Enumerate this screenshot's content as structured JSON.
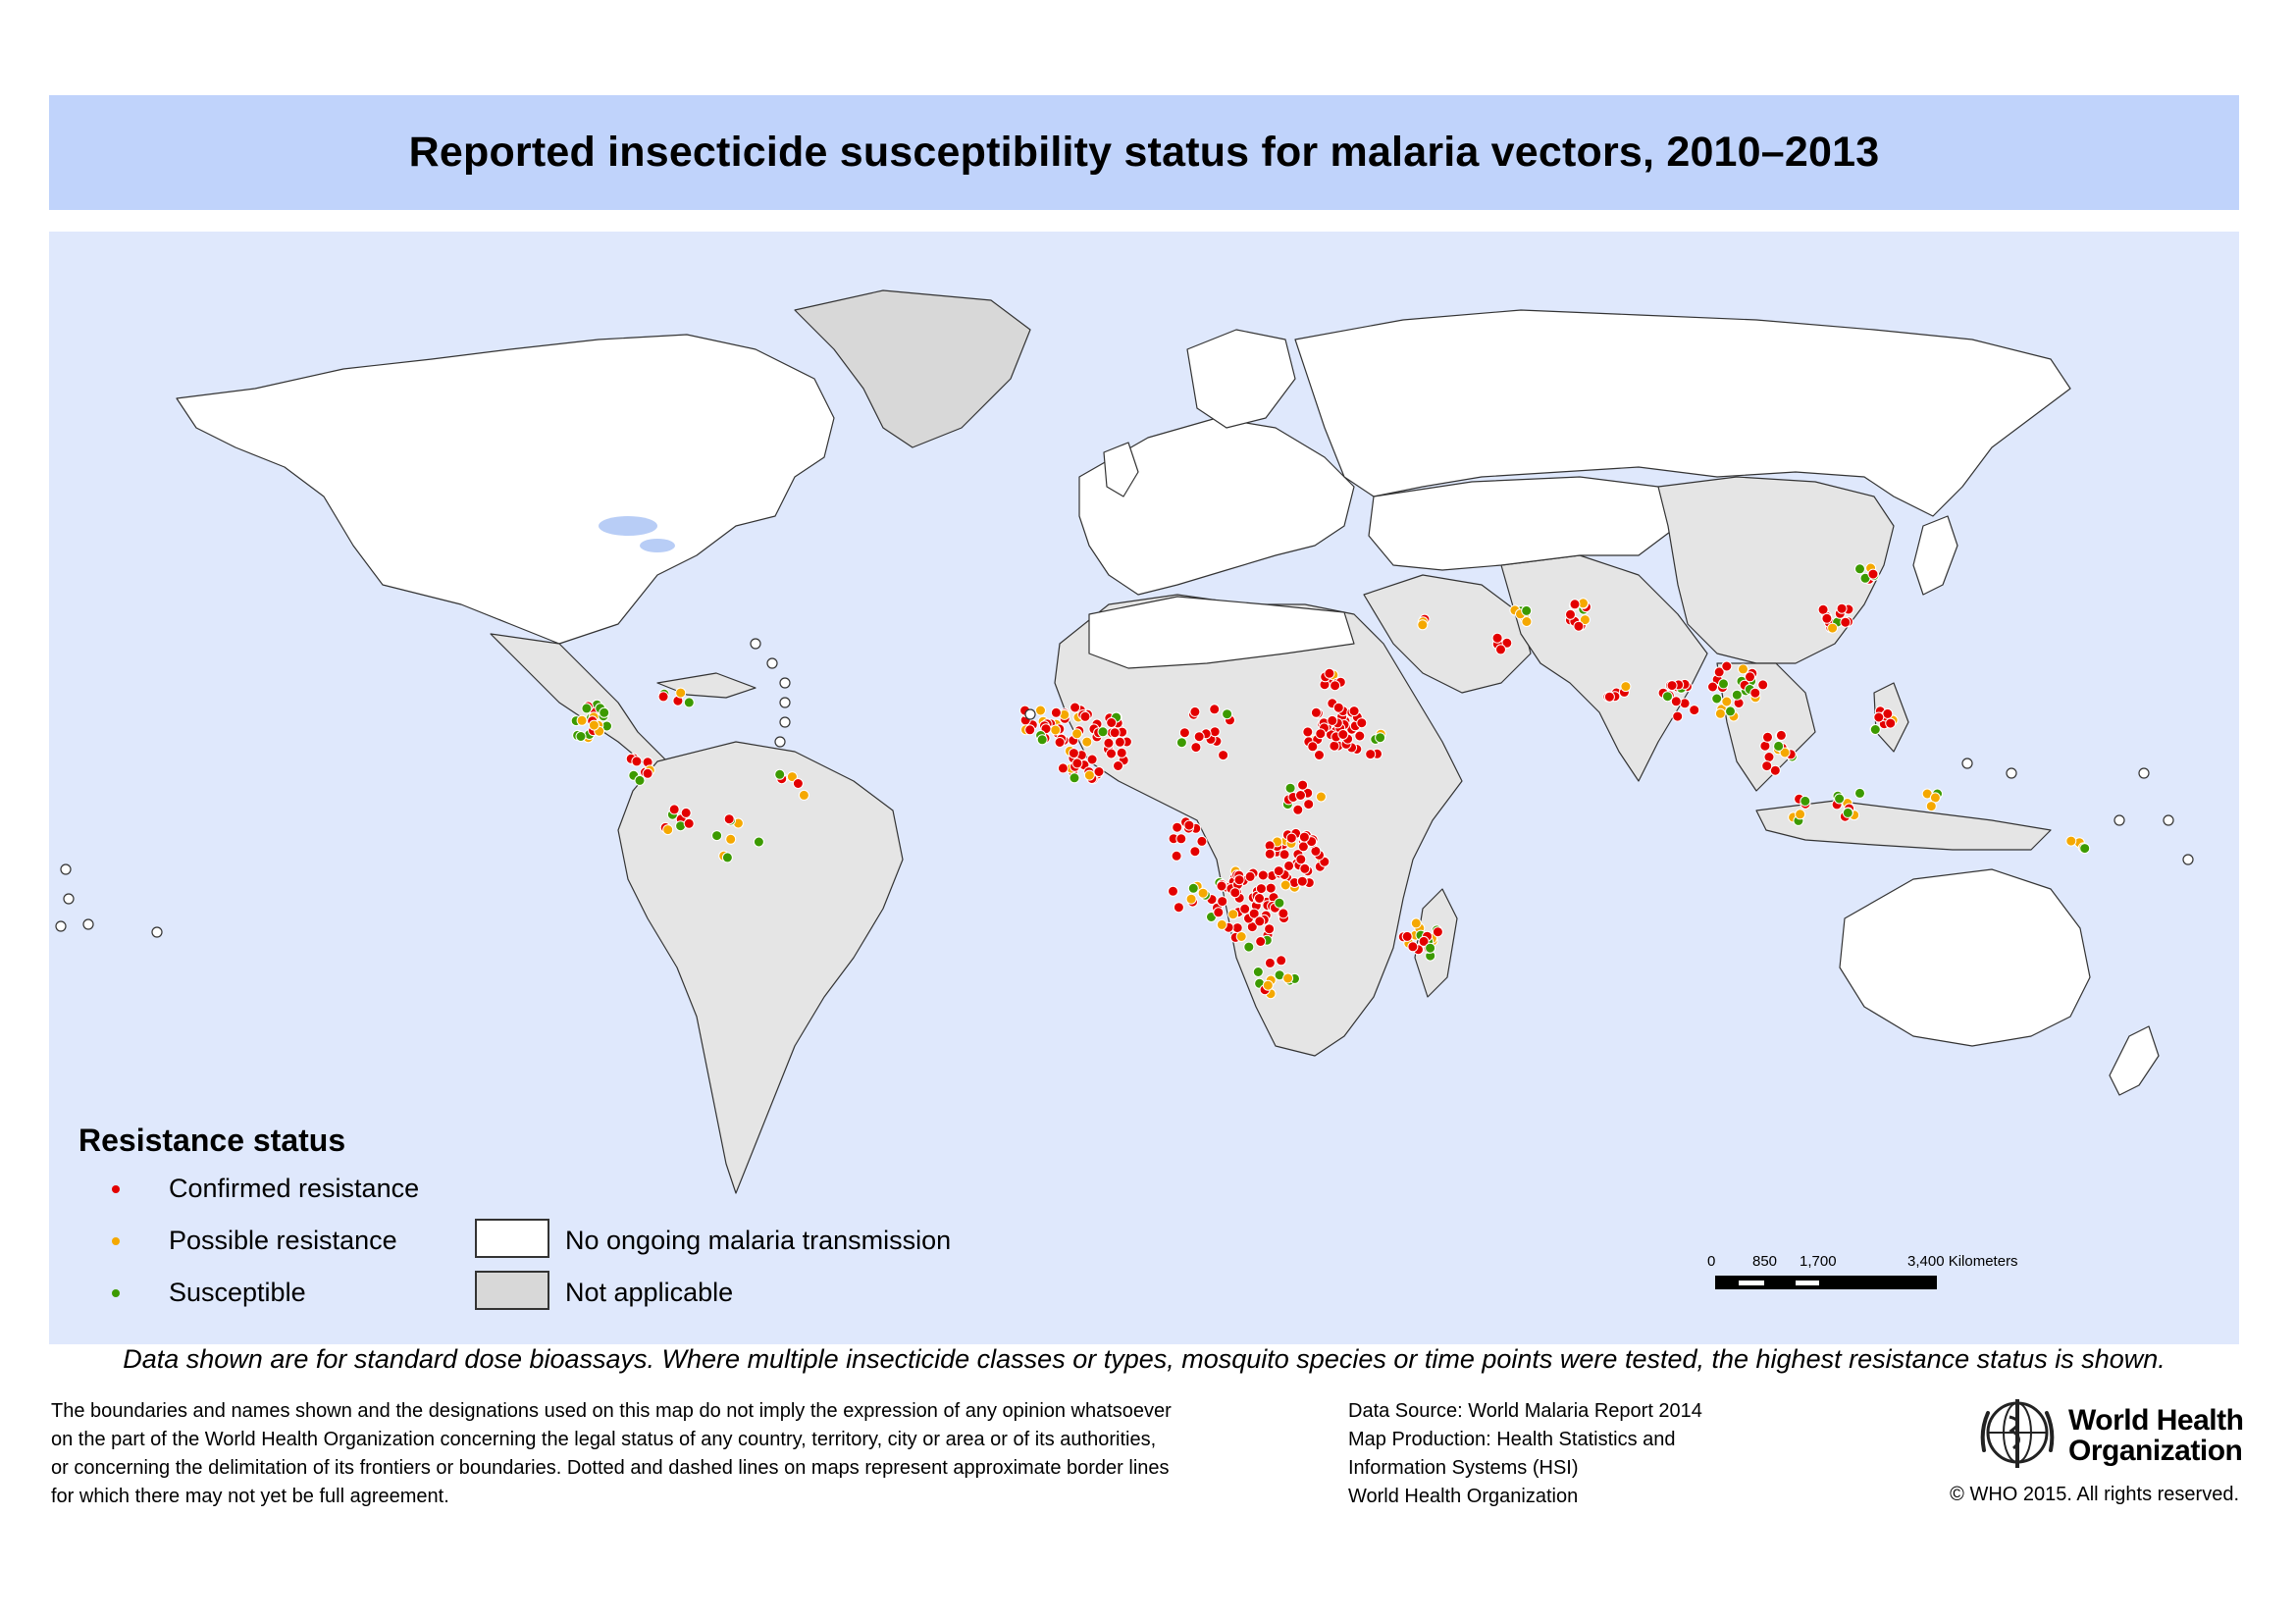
{
  "title": "Reported insecticide susceptibility status for malaria vectors, 2010–2013",
  "legend": {
    "title": "Resistance status",
    "items": [
      {
        "label": "Confirmed resistance",
        "color": "#e30000"
      },
      {
        "label": "Possible resistance",
        "color": "#f5a800"
      },
      {
        "label": "Susceptible",
        "color": "#3c9a00"
      }
    ],
    "areas": [
      {
        "label": "No ongoing malaria transmission",
        "color": "#ffffff"
      },
      {
        "label": "Not applicable",
        "color": "#d8d8d8"
      }
    ]
  },
  "scale": {
    "labels": [
      "0",
      "850",
      "1,700",
      "3,400 Kilometers"
    ]
  },
  "colors": {
    "ocean": "#dfe8fc",
    "title_bar": "#c0d3fb",
    "endemic_land": "#e5e5e5",
    "non_endemic_land": "#ffffff",
    "lakes": "#b8cdf6"
  },
  "note": "Data shown are for standard dose bioassays. Where multiple insecticide classes or types, mosquito species or time points were tested, the highest resistance status is shown.",
  "disclaimer": [
    "The boundaries and names shown and the designations used on this map do not imply the expression of any opinion whatsoever",
    "on the part of the World Health Organization concerning the legal status of any country, territory, city or area or of its authorities,",
    "or concerning the delimitation of its frontiers or boundaries. Dotted and dashed lines on maps represent approximate border lines",
    "for which there may not yet be full agreement."
  ],
  "source": [
    "Data Source: World Malaria Report 2014",
    "Map Production: Health Statistics and",
    "Information Systems (HSI)",
    "World Health Organization"
  ],
  "who": {
    "name_line1": "World Health",
    "name_line2": "Organization",
    "copyright": "© WHO 2015. All rights reserved."
  },
  "map_regions": [
    {
      "name": "North America",
      "status": "no-transmission"
    },
    {
      "name": "Greenland",
      "status": "not-applicable"
    },
    {
      "name": "Central America",
      "status": "endemic"
    },
    {
      "name": "South America",
      "status": "endemic"
    },
    {
      "name": "Europe",
      "status": "no-transmission"
    },
    {
      "name": "Russia",
      "status": "no-transmission"
    },
    {
      "name": "Africa",
      "status": "endemic"
    },
    {
      "name": "Middle East",
      "status": "endemic"
    },
    {
      "name": "South Asia",
      "status": "endemic"
    },
    {
      "name": "China",
      "status": "endemic"
    },
    {
      "name": "Southeast Asia",
      "status": "endemic"
    },
    {
      "name": "Australia",
      "status": "no-transmission"
    },
    {
      "name": "New Zealand",
      "status": "no-transmission"
    }
  ]
}
